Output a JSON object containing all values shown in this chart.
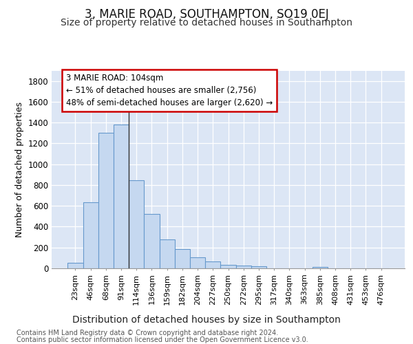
{
  "title1": "3, MARIE ROAD, SOUTHAMPTON, SO19 0EJ",
  "title2": "Size of property relative to detached houses in Southampton",
  "xlabel": "Distribution of detached houses by size in Southampton",
  "ylabel": "Number of detached properties",
  "categories": [
    "23sqm",
    "46sqm",
    "68sqm",
    "91sqm",
    "114sqm",
    "136sqm",
    "159sqm",
    "182sqm",
    "204sqm",
    "227sqm",
    "250sqm",
    "272sqm",
    "295sqm",
    "317sqm",
    "340sqm",
    "363sqm",
    "385sqm",
    "408sqm",
    "431sqm",
    "453sqm",
    "476sqm"
  ],
  "values": [
    50,
    635,
    1305,
    1380,
    845,
    525,
    275,
    185,
    105,
    65,
    35,
    25,
    20,
    0,
    0,
    0,
    15,
    0,
    0,
    0,
    0
  ],
  "bar_color": "#c5d8f0",
  "bar_edge_color": "#6699cc",
  "vline_color": "#333333",
  "annotation_text": "3 MARIE ROAD: 104sqm\n← 51% of detached houses are smaller (2,756)\n48% of semi-detached houses are larger (2,620) →",
  "annotation_box_color": "#ffffff",
  "annotation_box_edge": "#cc0000",
  "ylim": [
    0,
    1900
  ],
  "yticks": [
    0,
    200,
    400,
    600,
    800,
    1000,
    1200,
    1400,
    1600,
    1800
  ],
  "bg_color": "#dce6f5",
  "footer1": "Contains HM Land Registry data © Crown copyright and database right 2024.",
  "footer2": "Contains public sector information licensed under the Open Government Licence v3.0.",
  "title1_fontsize": 12,
  "title2_fontsize": 10,
  "xlabel_fontsize": 10,
  "ylabel_fontsize": 9,
  "tick_fontsize": 8.5,
  "footer_fontsize": 7
}
